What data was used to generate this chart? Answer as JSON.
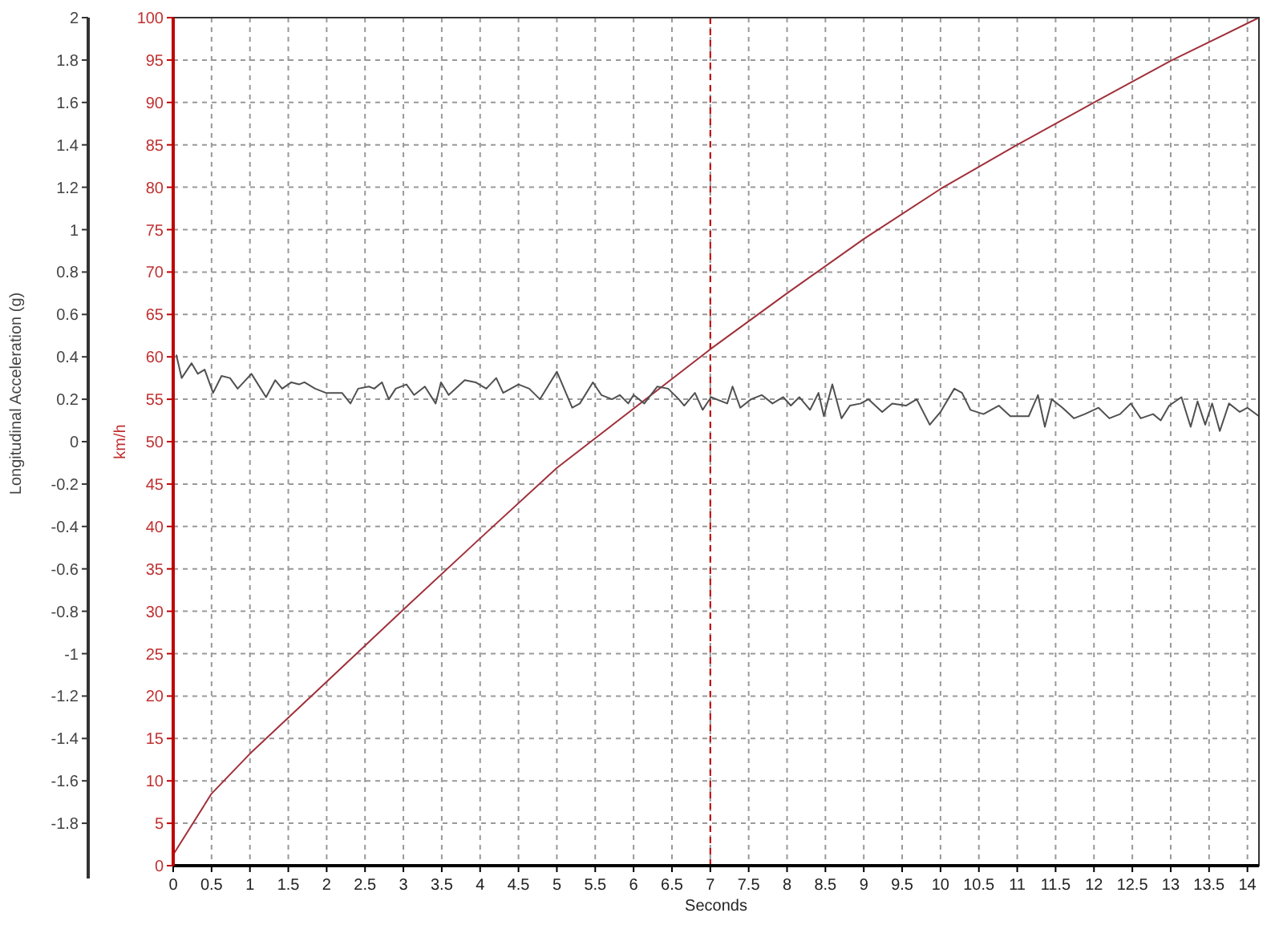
{
  "chart_data": {
    "type": "line",
    "xlabel": "Seconds",
    "ylabel": "Longitudinal Acceleration (g)",
    "y2label": "km/h",
    "xlim": [
      0,
      14.15
    ],
    "xticks": [
      0,
      0.5,
      1,
      1.5,
      2,
      2.5,
      3,
      3.5,
      4,
      4.5,
      5,
      5.5,
      6,
      6.5,
      7,
      7.5,
      8,
      8.5,
      9,
      9.5,
      10,
      10.5,
      11,
      11.5,
      12,
      12.5,
      13,
      13.5,
      14
    ],
    "ylim": [
      -2,
      2
    ],
    "yticks": [
      -1.8,
      -1.6,
      -1.4,
      -1.2,
      -1,
      -0.8,
      -0.6,
      -0.4,
      -0.2,
      0,
      0.2,
      0.4,
      0.6,
      0.8,
      1,
      1.2,
      1.4,
      1.6,
      1.8,
      2
    ],
    "y2lim": [
      0,
      100
    ],
    "y2ticks": [
      0,
      5,
      10,
      15,
      20,
      25,
      30,
      35,
      40,
      45,
      50,
      55,
      60,
      65,
      70,
      75,
      80,
      85,
      90,
      95,
      100
    ],
    "grid": true,
    "line_style": "solid",
    "marker": "none",
    "ref_lines": [
      {
        "axis": "x",
        "value": 7,
        "color": "#c00000",
        "line_style": "dashed"
      }
    ],
    "series": [
      {
        "color": "#a0303a",
        "axis": "y2",
        "x": [
          0,
          0.5,
          1,
          2,
          3,
          4,
          5,
          6,
          7,
          8,
          9,
          10,
          11,
          12,
          13,
          14.15
        ],
        "values": [
          1.3,
          8.5,
          13.2,
          21.7,
          30.2,
          38.6,
          46.9,
          53.9,
          60.9,
          67.5,
          73.9,
          79.8,
          85,
          90,
          94.9,
          100
        ]
      },
      {
        "color": "#505050",
        "axis": "y",
        "x": [
          0.04,
          0.11,
          0.24,
          0.32,
          0.41,
          0.52,
          0.63,
          0.74,
          0.84,
          1.02,
          1.21,
          1.33,
          1.42,
          1.54,
          1.64,
          1.71,
          1.85,
          1.99,
          2.2,
          2.31,
          2.41,
          2.55,
          2.62,
          2.72,
          2.81,
          2.9,
          3.04,
          3.14,
          3.28,
          3.42,
          3.49,
          3.59,
          3.8,
          3.94,
          4.08,
          4.21,
          4.3,
          4.5,
          4.64,
          4.78,
          5.0,
          5.2,
          5.3,
          5.47,
          5.58,
          5.72,
          5.82,
          5.93,
          6.0,
          6.14,
          6.31,
          6.45,
          6.59,
          6.66,
          6.8,
          6.9,
          7.01,
          7.22,
          7.29,
          7.39,
          7.53,
          7.67,
          7.81,
          7.95,
          8.05,
          8.16,
          8.3,
          8.41,
          8.48,
          8.59,
          8.71,
          8.82,
          8.96,
          9.06,
          9.24,
          9.37,
          9.55,
          9.69,
          9.86,
          10.0,
          10.18,
          10.28,
          10.39,
          10.56,
          10.76,
          10.91,
          11.15,
          11.27,
          11.36,
          11.45,
          11.59,
          11.74,
          11.88,
          12.06,
          12.2,
          12.34,
          12.48,
          12.61,
          12.77,
          12.87,
          12.98,
          13.14,
          13.26,
          13.35,
          13.45,
          13.54,
          13.64,
          13.76,
          13.9,
          14.0,
          14.15
        ],
        "values": [
          0.41,
          0.3,
          0.37,
          0.32,
          0.34,
          0.23,
          0.31,
          0.3,
          0.25,
          0.32,
          0.21,
          0.29,
          0.25,
          0.28,
          0.27,
          0.28,
          0.25,
          0.23,
          0.23,
          0.18,
          0.25,
          0.26,
          0.25,
          0.28,
          0.2,
          0.25,
          0.27,
          0.22,
          0.26,
          0.18,
          0.28,
          0.22,
          0.29,
          0.28,
          0.25,
          0.3,
          0.23,
          0.27,
          0.25,
          0.2,
          0.33,
          0.16,
          0.18,
          0.28,
          0.22,
          0.2,
          0.22,
          0.18,
          0.22,
          0.18,
          0.26,
          0.25,
          0.2,
          0.17,
          0.23,
          0.15,
          0.21,
          0.18,
          0.26,
          0.16,
          0.2,
          0.22,
          0.18,
          0.21,
          0.17,
          0.21,
          0.15,
          0.23,
          0.12,
          0.27,
          0.11,
          0.17,
          0.18,
          0.2,
          0.14,
          0.18,
          0.17,
          0.2,
          0.08,
          0.14,
          0.25,
          0.23,
          0.15,
          0.13,
          0.17,
          0.12,
          0.12,
          0.22,
          0.07,
          0.2,
          0.16,
          0.11,
          0.13,
          0.16,
          0.11,
          0.13,
          0.18,
          0.11,
          0.13,
          0.1,
          0.17,
          0.21,
          0.07,
          0.19,
          0.08,
          0.18,
          0.05,
          0.18,
          0.14,
          0.16,
          0.12
        ]
      }
    ]
  }
}
